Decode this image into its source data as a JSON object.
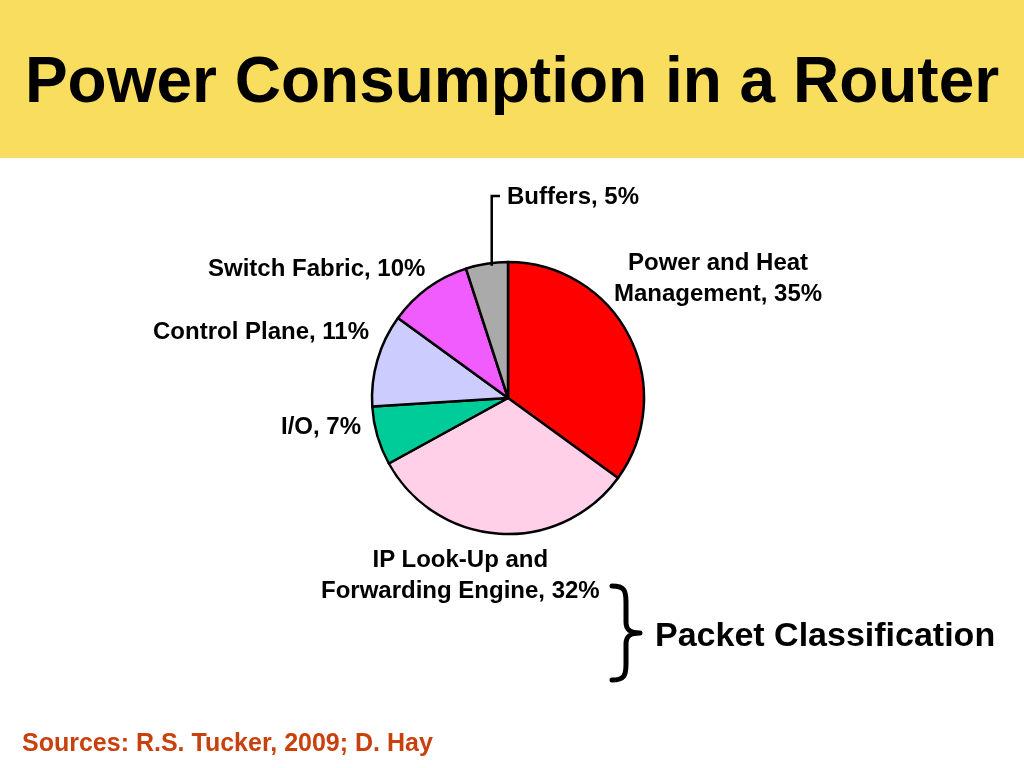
{
  "chart_data": {
    "type": "pie",
    "title": "Power Consumption in a Router",
    "categories": [
      "Power and Heat Management",
      "IP Look-Up and Forwarding Engine",
      "I/O",
      "Control Plane",
      "Switch Fabric",
      "Buffers"
    ],
    "values": [
      35,
      32,
      7,
      11,
      10,
      5
    ],
    "value_labels": [
      "35%",
      "32%",
      "7%",
      "11%",
      "10%",
      "5%"
    ],
    "colors": [
      "#ff0000",
      "#ffd0e8",
      "#00cc99",
      "#ccccff",
      "#f05cff",
      "#aaaaaa"
    ],
    "annotations": [
      "Packet Classification",
      "Sources: R.S. Tucker, 2009; D. Hay"
    ]
  }
}
